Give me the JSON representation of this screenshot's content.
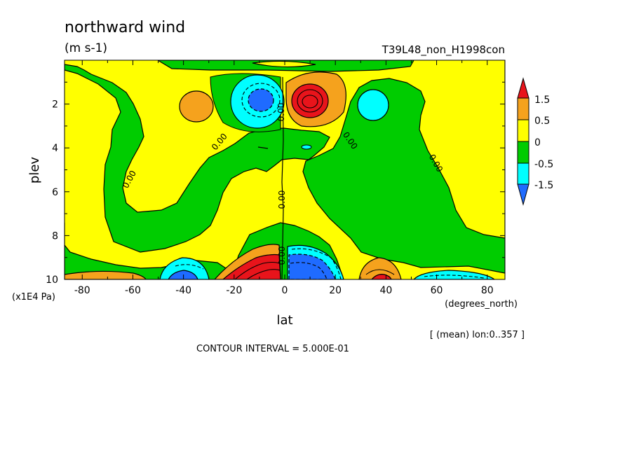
{
  "chart_data": {
    "type": "heatmap",
    "title": "northward wind",
    "subtitle": "(m s-1)",
    "run_label": "T39L48_non_H1998con",
    "xlabel": "lat",
    "x_unit": "(degrees_north)",
    "ylabel": "plev",
    "y_unit": "(x1E4 Pa)",
    "xlim": [
      -87,
      87
    ],
    "ylim": [
      10,
      0
    ],
    "x_ticks": [
      "-80",
      "-60",
      "-40",
      "-20",
      "0",
      "20",
      "40",
      "60",
      "80"
    ],
    "y_ticks": [
      "2",
      "4",
      "6",
      "8",
      "10"
    ],
    "mean_note": "[ (mean) lon:0..357 ]",
    "contour_interval": "CONTOUR INTERVAL = 5.000E-01",
    "contour_labels": [
      "0.00",
      "0.00",
      "0.00",
      "0.00",
      "0.00",
      "0.00",
      "0.00"
    ],
    "legend": {
      "labels": [
        "1.5",
        "0.5",
        "0",
        "-0.5",
        "-1.5"
      ],
      "colors": [
        "#e8141b",
        "#f5a21d",
        "#ffff00",
        "#00cc00",
        "#00ffff",
        "#1f6bff"
      ]
    },
    "features": [
      {
        "lat": -8,
        "plev": 2.0,
        "value": -1.5
      },
      {
        "lat": 10,
        "plev": 2.0,
        "value": 1.5
      },
      {
        "lat": -10,
        "plev": 9.6,
        "value": 2.0
      },
      {
        "lat": 10,
        "plev": 9.6,
        "value": -2.0
      },
      {
        "lat": -37,
        "plev": 2.2,
        "value": 0.7
      },
      {
        "lat": 37,
        "plev": 2.2,
        "value": -0.7
      },
      {
        "lat": -40,
        "plev": 9.8,
        "value": -1.5
      },
      {
        "lat": 38,
        "plev": 9.8,
        "value": 1.5
      },
      {
        "lat": -70,
        "plev": 9.9,
        "value": 0.8
      },
      {
        "lat": 70,
        "plev": 9.9,
        "value": -0.8
      }
    ]
  }
}
